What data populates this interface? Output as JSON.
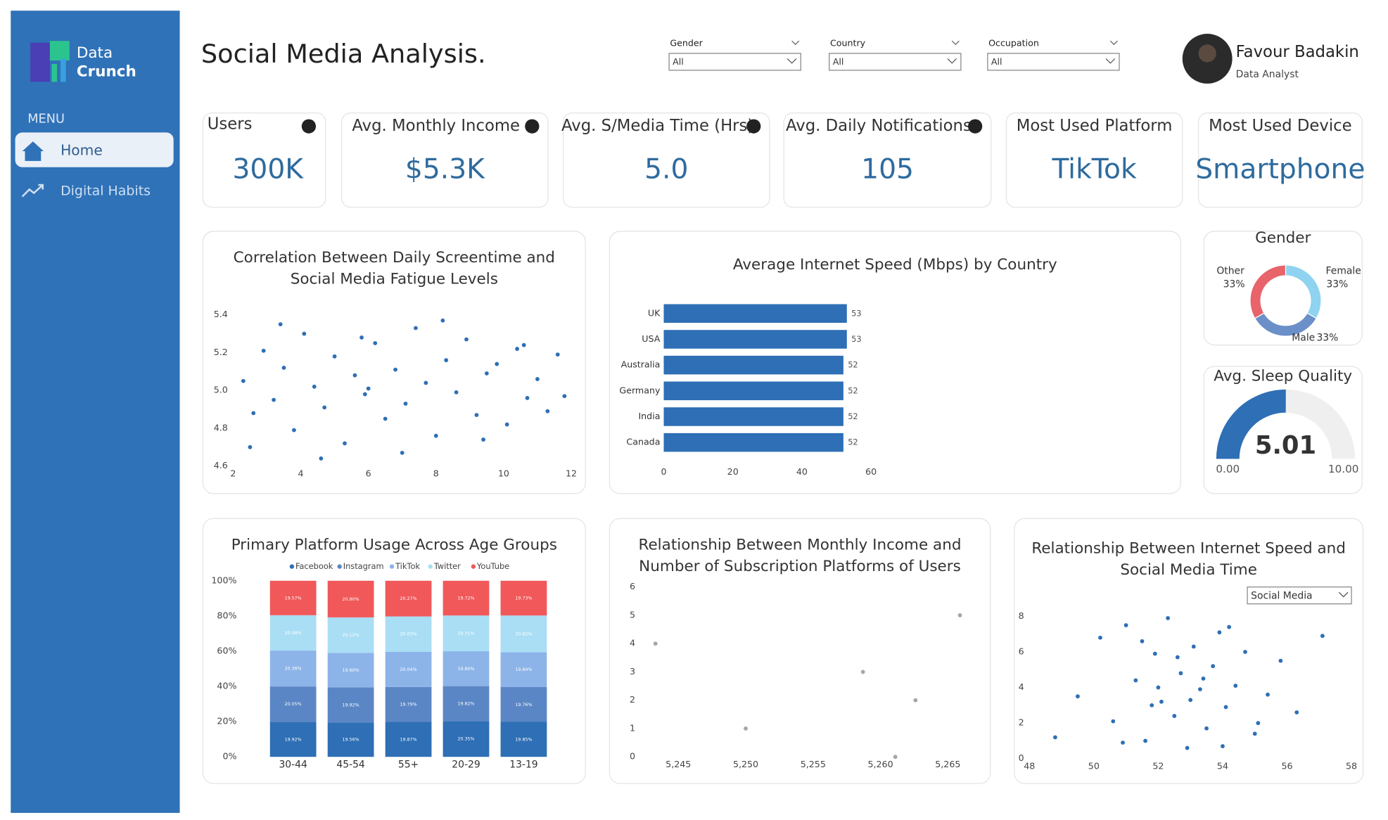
{
  "sidebar": {
    "logo": [
      "Data",
      "Crunch"
    ],
    "menu_label": "MENU",
    "items": [
      "Home",
      "Digital Habits"
    ]
  },
  "header": {
    "title": "Social Media Analysis.",
    "user_name": "Favour Badakin",
    "user_role": "Data Analyst"
  },
  "filters": [
    {
      "label": "Gender",
      "value": "All"
    },
    {
      "label": "Country",
      "value": "All"
    },
    {
      "label": "Occupation",
      "value": "All"
    }
  ],
  "kpis": [
    {
      "label": "Users",
      "value": "300K"
    },
    {
      "label": "Avg. Monthly Income",
      "value": "$5.3K"
    },
    {
      "label": "Avg. S/Media Time (Hrs)",
      "value": "5.0"
    },
    {
      "label": "Avg. Daily Notifications",
      "value": "105"
    },
    {
      "label": "Most Used Platform",
      "value": "TikTok"
    },
    {
      "label": "Most Used Device",
      "value": "Smartphone"
    }
  ],
  "chart_data": [
    {
      "type": "scatter",
      "title": "Correlation Between Daily Screentime and Social Media Fatigue Levels",
      "x": [
        2.3,
        2.6,
        2.9,
        3.2,
        3.5,
        3.8,
        4.1,
        4.4,
        4.7,
        5.0,
        5.3,
        5.6,
        5.9,
        6.2,
        6.5,
        6.8,
        7.1,
        7.4,
        7.7,
        8.0,
        8.3,
        8.6,
        8.9,
        9.2,
        9.5,
        9.8,
        10.1,
        10.4,
        10.7,
        11.0,
        11.3,
        11.6,
        2.5,
        3.4,
        4.6,
        5.8,
        7.0,
        8.2,
        9.4,
        10.6,
        11.8,
        6.0
      ],
      "y": [
        5.05,
        4.88,
        5.21,
        4.95,
        5.12,
        4.79,
        5.3,
        5.02,
        4.91,
        5.18,
        4.72,
        5.08,
        4.98,
        5.25,
        4.85,
        5.11,
        4.93,
        5.33,
        5.04,
        4.76,
        5.16,
        4.99,
        5.27,
        4.87,
        5.09,
        5.14,
        4.82,
        5.22,
        4.96,
        5.06,
        4.89,
        5.19,
        4.7,
        5.35,
        4.64,
        5.28,
        4.67,
        5.37,
        4.74,
        5.24,
        4.97,
        5.01
      ],
      "color": "#2e6fb5",
      "xlim": [
        2,
        12
      ],
      "xticks": [
        2,
        4,
        6,
        8,
        10,
        12
      ],
      "ylim": [
        4.6,
        5.4
      ],
      "yticks": [
        4.6,
        4.8,
        {
          "value": 5,
          "label": "5.0"
        },
        5.2,
        5.4
      ],
      "grid": false
    },
    {
      "type": "hbar",
      "title": "Average Internet Speed (Mbps) by Country",
      "categories": [
        "UK",
        "USA",
        "Australia",
        "Germany",
        "India",
        "Canada"
      ],
      "values": [
        53,
        53,
        52,
        52,
        52,
        52
      ],
      "color": "#2e6fb5",
      "xlim": [
        0,
        60
      ],
      "xticks": [
        0,
        20,
        40,
        60
      ],
      "grid": false
    },
    {
      "type": "donut",
      "title": "Gender",
      "categories": [
        "Female",
        "Male",
        "Other"
      ],
      "values": [
        33,
        33,
        33
      ],
      "value_labels": [
        "33%",
        "33%",
        "33%"
      ],
      "colors": [
        "#8fd3f0",
        "#6b8fc9",
        "#e8636a"
      ]
    },
    {
      "type": "gauge",
      "title": "Avg. Sleep Quality",
      "value": 5.01,
      "ylim": [
        0,
        10
      ],
      "yticks": [
        {
          "value": 0,
          "label": "0.00"
        },
        {
          "value": 10,
          "label": "10.00"
        }
      ],
      "color": "#2e6fb5"
    },
    {
      "type": "stacked",
      "title": "Primary Platform Usage Across Age Groups",
      "categories": [
        "30-44",
        "45-54",
        "55+",
        "20-29",
        "13-19"
      ],
      "series": [
        {
          "name": "Facebook",
          "color": "#2e6fb5",
          "values": [
            19.92,
            19.56,
            19.87,
            20.35,
            19.85
          ],
          "value_labels": [
            "19.92%",
            "19.56%",
            "19.87%",
            "20.35%",
            "19.85%"
          ]
        },
        {
          "name": "Instagram",
          "color": "#5b86c5",
          "values": [
            20.05,
            19.92,
            19.79,
            19.82,
            19.76
          ],
          "value_labels": [
            "20.05%",
            "19.92%",
            "19.79%",
            "19.82%",
            "19.76%"
          ]
        },
        {
          "name": "TikTok",
          "color": "#8db4e8",
          "values": [
            20.38,
            19.6,
            20.04,
            19.8,
            19.84
          ],
          "value_labels": [
            "20.38%",
            "19.60%",
            "20.04%",
            "19.80%",
            "19.84%"
          ]
        },
        {
          "name": "Twitter",
          "color": "#a9def5",
          "values": [
            20.08,
            20.12,
            20.03,
            20.31,
            20.82
          ],
          "value_labels": [
            "20.08%",
            "20.12%",
            "20.03%",
            "20.31%",
            "20.82%"
          ]
        },
        {
          "name": "YouTube",
          "color": "#f0585a",
          "values": [
            19.57,
            20.8,
            20.27,
            19.72,
            19.73
          ],
          "value_labels": [
            "19.57%",
            "20.80%",
            "20.27%",
            "19.72%",
            "19.73%"
          ]
        }
      ],
      "ylim": [
        0,
        100
      ],
      "yticks": [
        {
          "value": 0,
          "label": "0%"
        },
        {
          "value": 20,
          "label": "20%"
        },
        {
          "value": 40,
          "label": "40%"
        },
        {
          "value": 60,
          "label": "60%"
        },
        {
          "value": 80,
          "label": "80%"
        },
        {
          "value": 100,
          "label": "100%"
        }
      ]
    },
    {
      "type": "scatter",
      "title": "Relationship Between Monthly Income and Number of Subscription Platforms of Users",
      "x": [
        5243.3,
        5250.0,
        5258.7,
        5262.6,
        5265.9,
        5261.1
      ],
      "y": [
        4,
        1,
        3,
        2,
        5,
        0
      ],
      "color": "#a6a6a6",
      "xlim": [
        5242.2,
        5266.3
      ],
      "xticks": [
        {
          "value": 5245,
          "label": "5,245"
        },
        {
          "value": 5250,
          "label": "5,250"
        },
        {
          "value": 5255,
          "label": "5,255"
        },
        {
          "value": 5260,
          "label": "5,260"
        },
        {
          "value": 5265,
          "label": "5,265"
        }
      ],
      "ylim": [
        0,
        6
      ],
      "yticks": [
        0,
        1,
        2,
        3,
        4,
        5,
        6
      ],
      "grid": false
    },
    {
      "type": "scatter",
      "title": "Relationship Between Internet Speed and Social Media Time",
      "dropdown": "Social Media",
      "x": [
        48.8,
        49.5,
        50.2,
        50.6,
        51.0,
        51.3,
        51.6,
        51.9,
        52.1,
        52.3,
        52.5,
        52.7,
        52.9,
        53.1,
        53.3,
        53.5,
        53.7,
        53.9,
        54.1,
        54.4,
        54.7,
        55.0,
        55.4,
        55.8,
        56.3,
        57.1,
        50.9,
        51.8,
        52.6,
        53.4,
        54.2,
        55.1,
        52.0,
        53.0,
        54.0,
        51.5
      ],
      "y": [
        1.2,
        3.5,
        6.8,
        2.1,
        7.5,
        4.4,
        1.0,
        5.9,
        3.2,
        7.9,
        2.4,
        4.8,
        0.6,
        6.3,
        3.9,
        1.7,
        5.2,
        7.1,
        2.9,
        4.1,
        6.0,
        1.4,
        3.6,
        5.5,
        2.6,
        6.9,
        0.9,
        3.0,
        5.7,
        4.5,
        7.4,
        2.0,
        4.0,
        3.3,
        0.7,
        6.6
      ],
      "color": "#2e6fb5",
      "xlim": [
        48,
        58
      ],
      "xticks": [
        48,
        50,
        52,
        54,
        56,
        58
      ],
      "ylim": [
        0,
        8
      ],
      "yticks": [
        0,
        2,
        4,
        6,
        8
      ],
      "grid": false
    }
  ]
}
